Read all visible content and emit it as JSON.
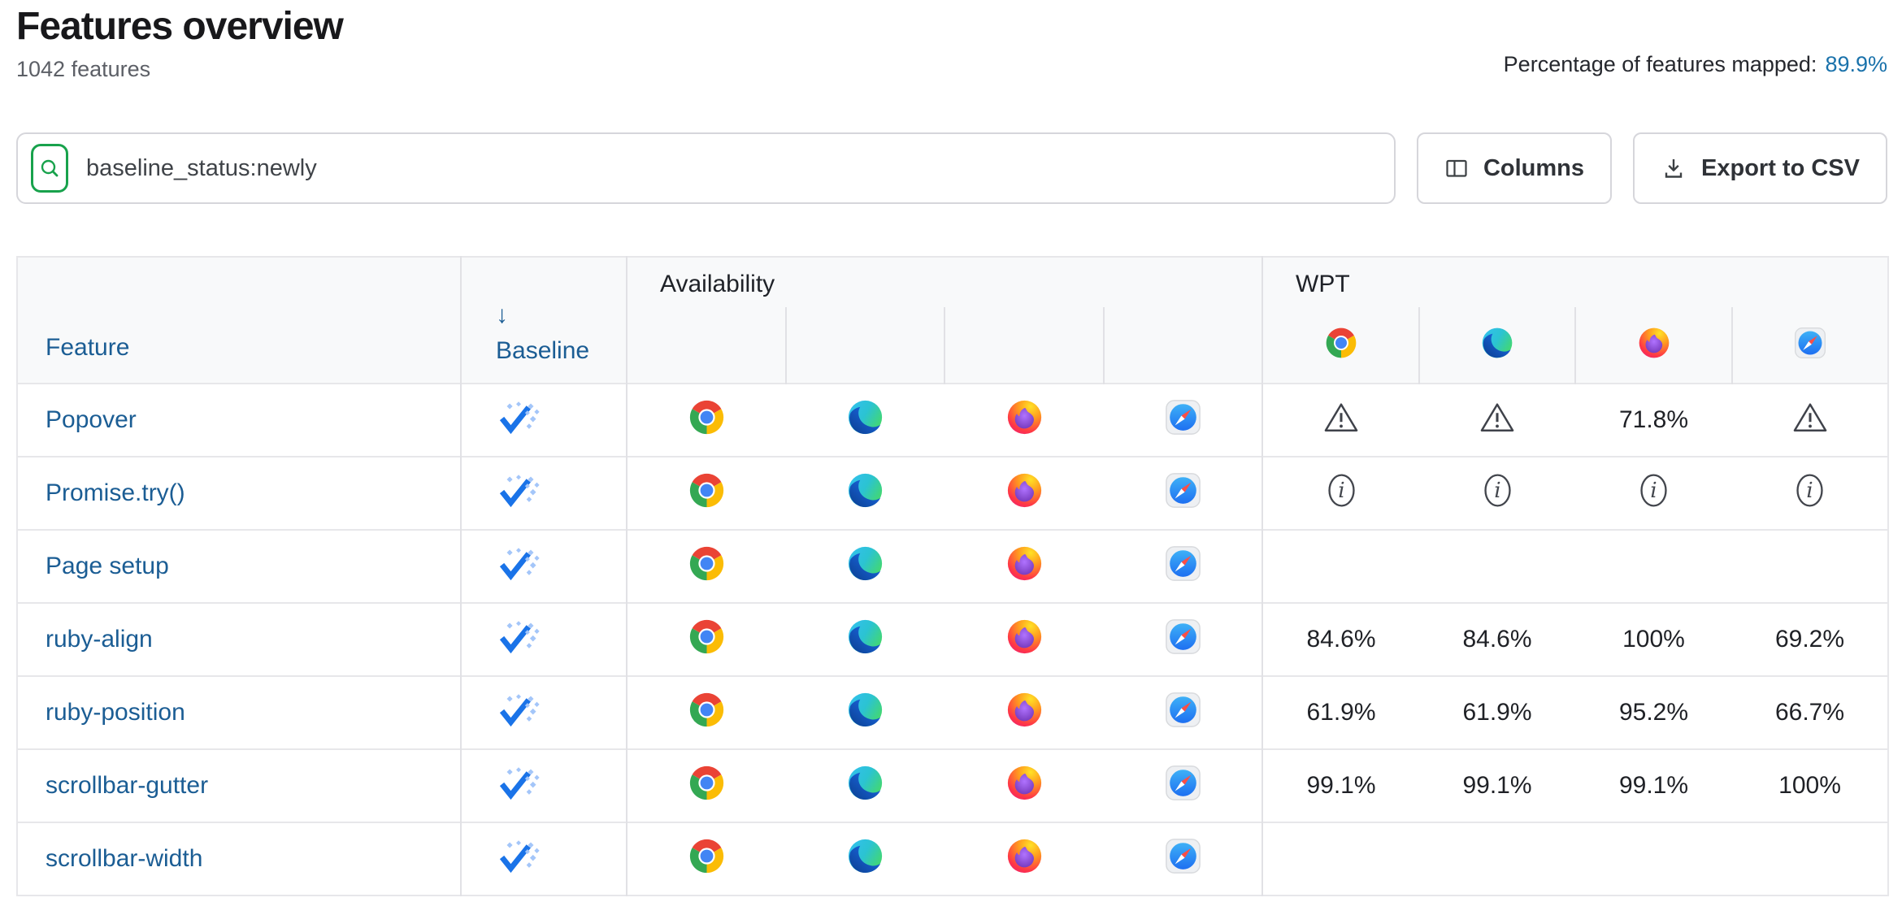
{
  "header": {
    "title": "Features overview",
    "feature_count": "1042 features",
    "mapped_label": "Percentage of features mapped:",
    "mapped_value": "89.9%"
  },
  "toolbar": {
    "search_value": "baseline_status:newly",
    "columns_label": "Columns",
    "export_label": "Export to CSV"
  },
  "table": {
    "columns": {
      "feature": "Feature",
      "baseline_sort_arrow": "↓",
      "baseline": "Baseline",
      "availability_group": "Availability",
      "wpt_group": "WPT"
    },
    "availability_browsers": [
      "chrome",
      "edge",
      "firefox",
      "safari"
    ],
    "wpt_browsers": [
      "chrome",
      "edge",
      "firefox",
      "safari"
    ],
    "rows": [
      {
        "feature": "Popover",
        "baseline": "newly",
        "availability": [
          "chrome",
          "edge",
          "firefox",
          "safari"
        ],
        "wpt": [
          "warning",
          "warning",
          "71.8%",
          "warning"
        ]
      },
      {
        "feature": "Promise.try()",
        "baseline": "newly",
        "availability": [
          "chrome",
          "edge",
          "firefox",
          "safari"
        ],
        "wpt": [
          "info",
          "info",
          "info",
          "info"
        ]
      },
      {
        "feature": "Page setup",
        "baseline": "newly",
        "availability": [
          "chrome",
          "edge",
          "firefox",
          "safari"
        ],
        "wpt": [
          "",
          "",
          "",
          ""
        ]
      },
      {
        "feature": "ruby-align",
        "baseline": "newly",
        "availability": [
          "chrome",
          "edge",
          "firefox",
          "safari"
        ],
        "wpt": [
          "84.6%",
          "84.6%",
          "100%",
          "69.2%"
        ]
      },
      {
        "feature": "ruby-position",
        "baseline": "newly",
        "availability": [
          "chrome",
          "edge",
          "firefox",
          "safari"
        ],
        "wpt": [
          "61.9%",
          "61.9%",
          "95.2%",
          "66.7%"
        ]
      },
      {
        "feature": "scrollbar-gutter",
        "baseline": "newly",
        "availability": [
          "chrome",
          "edge",
          "firefox",
          "safari"
        ],
        "wpt": [
          "99.1%",
          "99.1%",
          "99.1%",
          "100%"
        ]
      },
      {
        "feature": "scrollbar-width",
        "baseline": "newly",
        "availability": [
          "chrome",
          "edge",
          "firefox",
          "safari"
        ],
        "wpt": [
          "",
          "",
          "",
          ""
        ]
      }
    ]
  },
  "colors": {
    "link_blue": "#1b5d94",
    "stat_blue": "#1a72ab",
    "search_green": "#18a24c",
    "baseline_check_blue": "#1a73e8",
    "baseline_sparkle_blue": "#a4c6f9",
    "header_bg": "#f8f9fa"
  }
}
